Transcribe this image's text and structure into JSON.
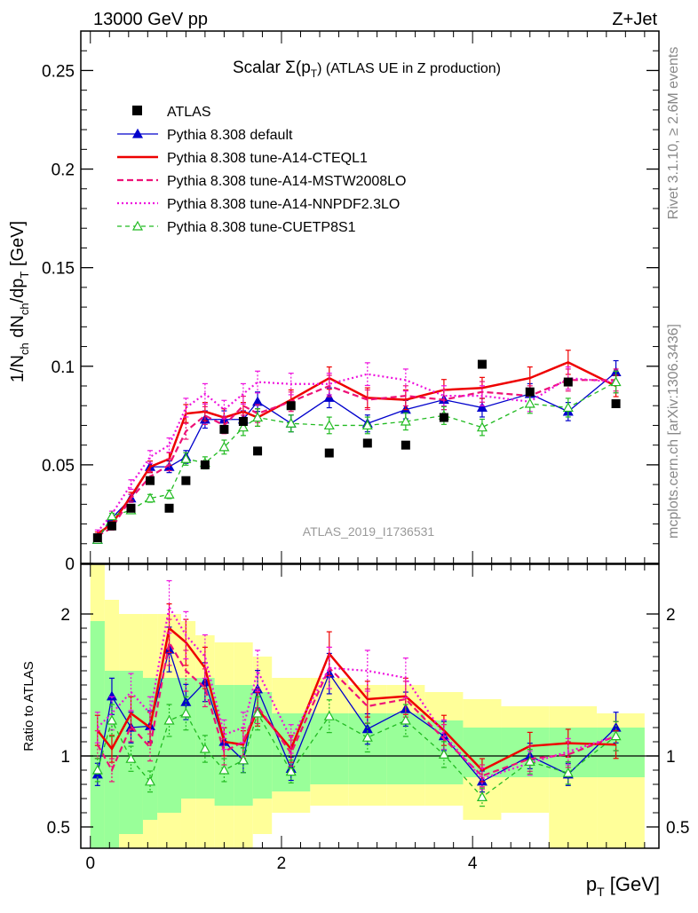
{
  "header": {
    "left": "13000 GeV pp",
    "right": "Z+Jet"
  },
  "side_labels": {
    "rivet": "Rivet 3.1.10, ≥ 2.6M events",
    "mcplots": "mcplots.cern.ch [arXiv:1306.3436]"
  },
  "colors": {
    "atlas": "#000000",
    "default": "#0000cc",
    "cteql1": "#ee0000",
    "mstw": "#ee1177",
    "nnpdf": "#ee11dd",
    "cuetp": "#22bb22",
    "band_inner": "#99ff99",
    "band_outer": "#ffff99"
  },
  "chart_data": [
    {
      "type": "line",
      "title": "Scalar Σ(p",
      "title_sub": "T",
      "title_tail": ") (ATLAS UE in Z production)",
      "ylabel": "1/N",
      "ylabel_parts": [
        "1/N",
        "ch",
        " dN",
        "ch",
        "/dp",
        "T",
        " [GeV]"
      ],
      "analysis_label": "ATLAS_2019_I1736531",
      "xlim": [
        -0.1,
        5.95
      ],
      "ylim": [
        0.0,
        0.27
      ],
      "yticks": [
        0,
        0.05,
        0.1,
        0.15,
        0.2,
        0.25
      ],
      "ytick_labels": [
        "0",
        "0.05",
        "0.1",
        "0.15",
        "0.2",
        "0.25"
      ],
      "legend_placement": "top-left",
      "x": [
        0.075,
        0.225,
        0.425,
        0.625,
        0.825,
        1.0,
        1.2,
        1.4,
        1.6,
        1.75,
        2.1,
        2.5,
        2.9,
        3.3,
        3.7,
        4.1,
        4.6,
        5.0,
        5.5
      ],
      "series": [
        {
          "name": "ATLAS",
          "key": "atlas",
          "style": "data",
          "values": [
            0.013,
            0.019,
            0.028,
            0.042,
            0.028,
            0.042,
            0.05,
            0.068,
            0.072,
            0.057,
            0.08,
            0.056,
            0.061,
            0.06,
            0.074,
            0.101,
            0.087,
            0.092,
            0.081
          ]
        },
        {
          "name": "Pythia 8.308 default",
          "key": "default",
          "style": "solid-triangle",
          "values": [
            0.012,
            0.023,
            0.033,
            0.049,
            0.049,
            0.054,
            0.073,
            0.073,
            0.073,
            0.082,
            0.071,
            0.084,
            0.071,
            0.078,
            0.083,
            0.079,
            0.086,
            0.077,
            0.097
          ]
        },
        {
          "name": "Pythia 8.308 tune-A14-CTEQL1",
          "key": "cteql1",
          "style": "solid-thick",
          "values": [
            0.015,
            0.02,
            0.034,
            0.049,
            0.053,
            0.076,
            0.077,
            0.074,
            0.077,
            0.074,
            0.083,
            0.094,
            0.084,
            0.083,
            0.088,
            0.089,
            0.094,
            0.102,
            0.09
          ]
        },
        {
          "name": "Pythia 8.308 tune-A14-MSTW2008LO",
          "key": "mstw",
          "style": "dashed",
          "values": [
            0.014,
            0.018,
            0.033,
            0.044,
            0.05,
            0.067,
            0.075,
            0.07,
            0.08,
            0.076,
            0.082,
            0.09,
            0.083,
            0.085,
            0.083,
            0.087,
            0.085,
            0.093,
            0.093
          ]
        },
        {
          "name": "Pythia 8.308 tune-A14-NNPDF2.3LO",
          "key": "nnpdf",
          "style": "dotted",
          "values": [
            0.016,
            0.025,
            0.04,
            0.054,
            0.06,
            0.079,
            0.086,
            0.078,
            0.086,
            0.092,
            0.091,
            0.091,
            0.096,
            0.093,
            0.085,
            0.085,
            0.082,
            0.094,
            0.092
          ]
        },
        {
          "name": "Pythia 8.308 tune-CUETP8S1",
          "key": "cuetp",
          "style": "dashed-open-triangle",
          "values": [
            0.012,
            0.024,
            0.027,
            0.033,
            0.035,
            0.053,
            0.051,
            0.059,
            0.069,
            0.074,
            0.071,
            0.07,
            0.07,
            0.072,
            0.075,
            0.069,
            0.081,
            0.079,
            0.092
          ]
        }
      ]
    },
    {
      "type": "line",
      "ylabel": "Ratio to ATLAS",
      "xlabel": "p",
      "xlabel_sub": "T",
      "xlabel_tail": " [GeV]",
      "xlim": [
        -0.1,
        5.95
      ],
      "ylim": [
        0.35,
        2.35
      ],
      "yticks": [
        0.5,
        1,
        2
      ],
      "ytick_labels": [
        "0.5",
        "1",
        "2"
      ],
      "xticks": [
        0,
        2,
        4
      ],
      "xtick_labels": [
        "0",
        "2",
        "4"
      ],
      "reference_line": 1,
      "bins": [
        [
          0.0,
          0.15
        ],
        [
          0.15,
          0.3
        ],
        [
          0.3,
          0.55
        ],
        [
          0.55,
          0.7
        ],
        [
          0.7,
          0.95
        ],
        [
          0.95,
          1.1
        ],
        [
          1.1,
          1.3
        ],
        [
          1.3,
          1.5
        ],
        [
          1.5,
          1.7
        ],
        [
          1.7,
          1.9
        ],
        [
          1.9,
          2.3
        ],
        [
          2.3,
          2.7
        ],
        [
          2.7,
          3.1
        ],
        [
          3.1,
          3.5
        ],
        [
          3.5,
          3.9
        ],
        [
          3.9,
          4.3
        ],
        [
          4.3,
          4.8
        ],
        [
          4.8,
          5.3
        ],
        [
          5.3,
          5.8
        ]
      ],
      "band_inner": [
        [
          0.35,
          1.95
        ],
        [
          0.35,
          1.6
        ],
        [
          0.45,
          1.6
        ],
        [
          0.55,
          1.55
        ],
        [
          0.6,
          1.55
        ],
        [
          0.7,
          1.55
        ],
        [
          0.7,
          1.55
        ],
        [
          0.65,
          1.5
        ],
        [
          0.65,
          1.5
        ],
        [
          0.7,
          1.45
        ],
        [
          0.75,
          1.3
        ],
        [
          0.8,
          1.3
        ],
        [
          0.8,
          1.3
        ],
        [
          0.8,
          1.3
        ],
        [
          0.8,
          1.25
        ],
        [
          0.85,
          1.2
        ],
        [
          0.85,
          1.2
        ],
        [
          0.85,
          1.2
        ],
        [
          0.85,
          1.2
        ]
      ],
      "band_outer": [
        [
          0.35,
          2.35
        ],
        [
          0.35,
          2.1
        ],
        [
          0.35,
          2.0
        ],
        [
          0.35,
          2.0
        ],
        [
          0.35,
          2.0
        ],
        [
          0.35,
          1.95
        ],
        [
          0.35,
          1.85
        ],
        [
          0.35,
          1.8
        ],
        [
          0.35,
          1.8
        ],
        [
          0.45,
          1.7
        ],
        [
          0.6,
          1.55
        ],
        [
          0.65,
          1.55
        ],
        [
          0.65,
          1.5
        ],
        [
          0.65,
          1.5
        ],
        [
          0.65,
          1.45
        ],
        [
          0.55,
          1.4
        ],
        [
          0.6,
          1.35
        ],
        [
          0.35,
          1.35
        ],
        [
          0.35,
          1.3
        ]
      ],
      "series": [
        {
          "name": "Pythia 8.308 default",
          "key": "default",
          "style": "solid-triangle",
          "values": [
            0.87,
            1.42,
            1.2,
            1.21,
            1.75,
            1.38,
            1.52,
            1.1,
            0.97,
            1.47,
            0.91,
            1.58,
            1.19,
            1.33,
            1.14,
            0.82,
            1.0,
            0.87,
            1.2
          ]
        },
        {
          "name": "Pythia 8.308 tune-A14-CTEQL1",
          "key": "cteql1",
          "style": "solid-thick",
          "values": [
            1.18,
            1.05,
            1.3,
            1.2,
            1.9,
            1.8,
            1.62,
            1.1,
            1.08,
            1.33,
            1.05,
            1.72,
            1.4,
            1.42,
            1.18,
            0.9,
            1.07,
            1.09,
            1.08
          ]
        },
        {
          "name": "Pythia 8.308 tune-A14-MSTW2008LO",
          "key": "mstw",
          "style": "dashed",
          "values": [
            1.08,
            0.9,
            1.21,
            1.06,
            1.8,
            1.6,
            1.48,
            1.03,
            1.1,
            1.35,
            1.02,
            1.62,
            1.35,
            1.4,
            1.12,
            0.86,
            0.98,
            1.01,
            1.14
          ]
        },
        {
          "name": "Pythia 8.308 tune-A14-NNPDF2.3LO",
          "key": "nnpdf",
          "style": "dotted",
          "values": [
            1.2,
            1.3,
            1.45,
            1.3,
            2.05,
            1.85,
            1.7,
            1.15,
            1.2,
            1.6,
            1.12,
            1.62,
            1.6,
            1.55,
            1.15,
            0.84,
            0.95,
            1.03,
            1.14
          ]
        },
        {
          "name": "Pythia 8.308 tune-CUETP8S1",
          "key": "cuetp",
          "style": "dashed-open-triangle",
          "values": [
            0.9,
            1.25,
            0.98,
            0.82,
            1.25,
            1.3,
            1.05,
            0.9,
            0.97,
            1.3,
            0.89,
            1.28,
            1.13,
            1.25,
            1.01,
            0.71,
            0.96,
            0.88,
            1.14
          ]
        }
      ]
    }
  ]
}
